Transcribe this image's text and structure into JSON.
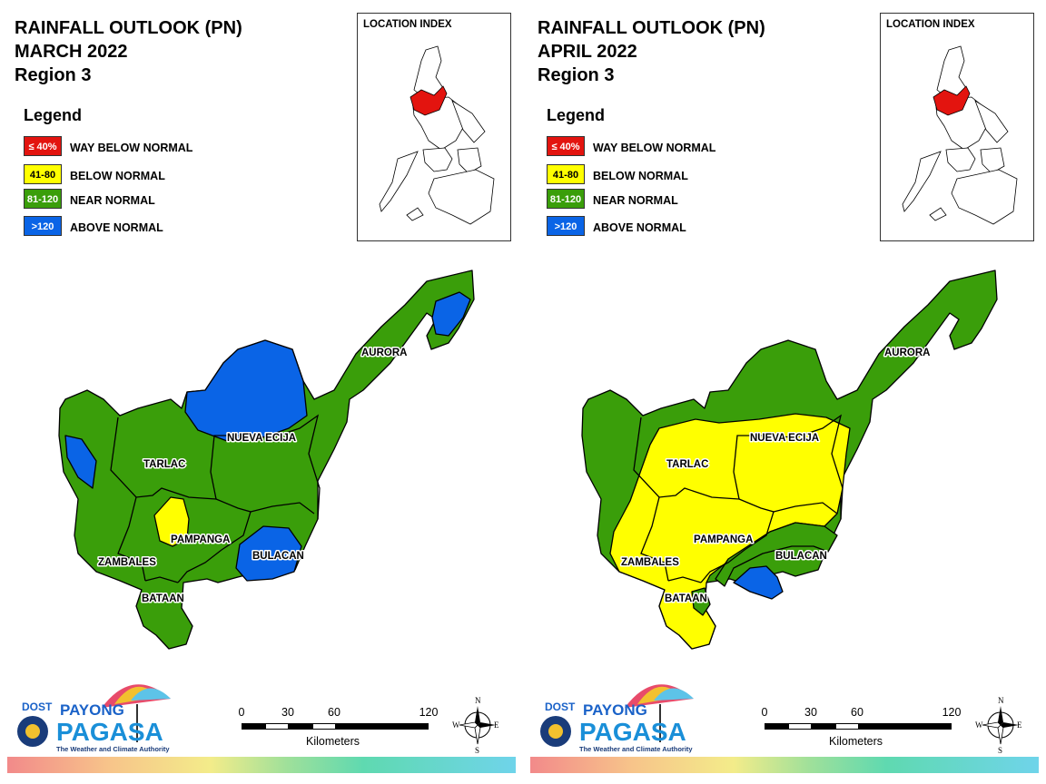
{
  "colors": {
    "way_below": "#e3140f",
    "below": "#ffff00",
    "near": "#3a9e0a",
    "above": "#0a64e6"
  },
  "legend": {
    "title": "Legend",
    "items": [
      {
        "range": "≤ 40%",
        "label": "WAY BELOW NORMAL"
      },
      {
        "range": "41-80",
        "label": "BELOW NORMAL"
      },
      {
        "range": "81-120",
        "label": "NEAR NORMAL"
      },
      {
        "range": ">120",
        "label": "ABOVE NORMAL"
      }
    ]
  },
  "location_index": {
    "title": "LOCATION INDEX"
  },
  "provinces": {
    "aurora": "AURORA",
    "nueva_ecija": "NUEVA ECIJA",
    "tarlac": "TARLAC",
    "pampanga": "PAMPANGA",
    "bulacan": "BULACAN",
    "zambales": "ZAMBALES",
    "bataan": "BATAAN"
  },
  "scale": {
    "ticks": [
      "0",
      "30",
      "60",
      "120"
    ],
    "unit": "Kilometers"
  },
  "compass": {
    "n": "N",
    "s": "S",
    "e": "E",
    "w": "W"
  },
  "logo": {
    "dost": "DOST",
    "payong": "PAYONG",
    "pagasa": "PAGASA",
    "tagline": "The Weather and Climate Authority"
  },
  "panels": [
    {
      "title": "RAINFALL OUTLOOK (PN)",
      "month": "MARCH 2022",
      "region": "Region 3"
    },
    {
      "title": "RAINFALL OUTLOOK (PN)",
      "month": "APRIL 2022",
      "region": "Region 3"
    }
  ]
}
